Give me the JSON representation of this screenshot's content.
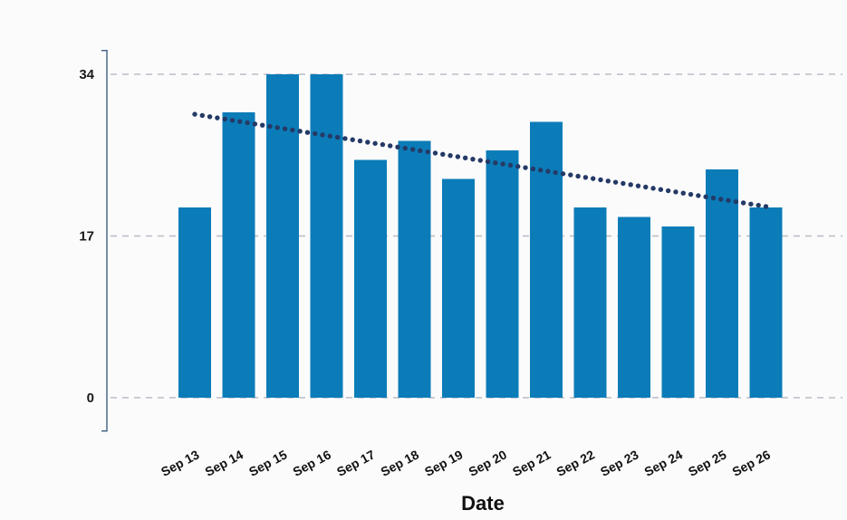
{
  "chart_data": {
    "type": "bar",
    "title": "",
    "xlabel": "Date",
    "ylabel": "",
    "categories": [
      "Sep 13",
      "Sep 14",
      "Sep 15",
      "Sep 16",
      "Sep 17",
      "Sep 18",
      "Sep 19",
      "Sep 20",
      "Sep 21",
      "Sep 22",
      "Sep 23",
      "Sep 24",
      "Sep 25",
      "Sep 26"
    ],
    "values": [
      20,
      30,
      34,
      34,
      25,
      27,
      23,
      26,
      29,
      20,
      19,
      18,
      24,
      20
    ],
    "yticks": [
      0,
      17,
      34
    ],
    "ylim": [
      -3.5,
      36.5
    ],
    "grid": true,
    "trendline": {
      "style": "dotted",
      "start": 29.8,
      "end": 20.1
    },
    "colors": {
      "bar": "#0b7cb8",
      "trendline": "#243a66",
      "grid": "#b9bcc6"
    }
  }
}
